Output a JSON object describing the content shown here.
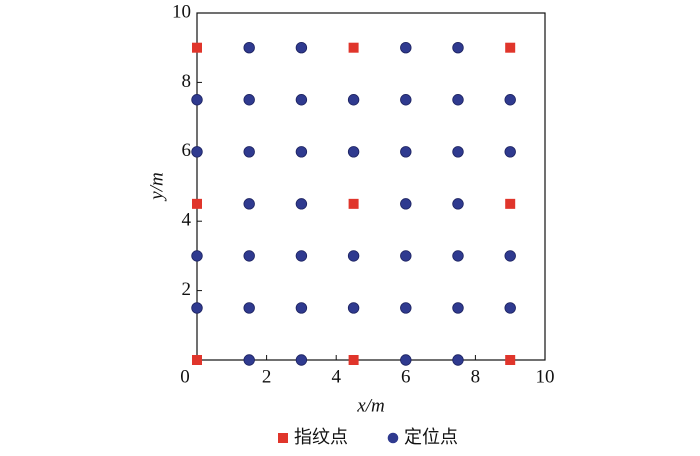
{
  "chart_data": {
    "type": "scatter",
    "x_label": "x/m",
    "y_label": "y/m",
    "xlim": [
      0,
      10
    ],
    "ylim": [
      0,
      10
    ],
    "xticks": [
      0,
      2,
      4,
      6,
      8,
      10
    ],
    "yticks": [
      2,
      4,
      6,
      8,
      10
    ],
    "grid": false,
    "legend": "bottom",
    "series": [
      {
        "name": "指纹点",
        "color": "#e0352b",
        "marker": "square",
        "x": [
          0,
          4.5,
          9,
          0,
          4.5,
          9,
          0,
          4.5,
          9
        ],
        "values": [
          0,
          0,
          0,
          4.5,
          4.5,
          4.5,
          9,
          9,
          9
        ]
      },
      {
        "name": "定位点",
        "color": "#2f3a8f",
        "marker": "circle",
        "x": [
          1.5,
          3,
          6,
          7.5,
          0,
          1.5,
          3,
          4.5,
          6,
          7.5,
          9,
          0,
          1.5,
          3,
          4.5,
          6,
          7.5,
          9,
          1.5,
          3,
          6,
          7.5,
          0,
          1.5,
          3,
          4.5,
          6,
          7.5,
          9,
          0,
          1.5,
          3,
          4.5,
          6,
          7.5,
          9,
          1.5,
          3,
          6,
          7.5
        ],
        "values": [
          0,
          0,
          0,
          0,
          1.5,
          1.5,
          1.5,
          1.5,
          1.5,
          1.5,
          1.5,
          3,
          3,
          3,
          3,
          3,
          3,
          3,
          4.5,
          4.5,
          4.5,
          4.5,
          6,
          6,
          6,
          6,
          6,
          6,
          6,
          7.5,
          7.5,
          7.5,
          7.5,
          7.5,
          7.5,
          7.5,
          9,
          9,
          9,
          9
        ]
      }
    ]
  }
}
